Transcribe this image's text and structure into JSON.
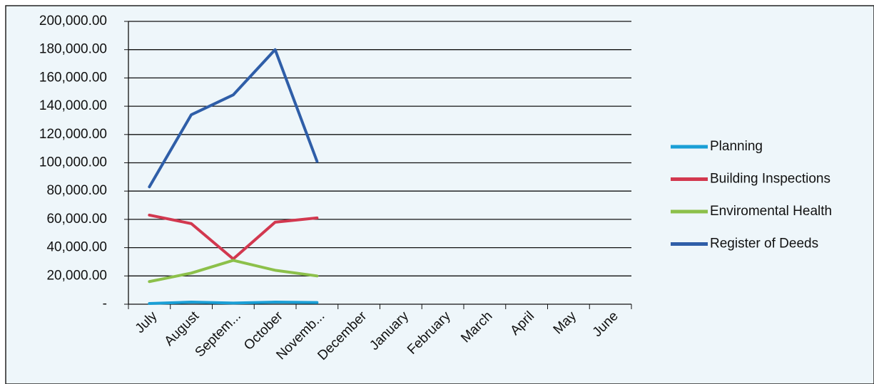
{
  "chart_data": {
    "type": "line",
    "categories": [
      "July",
      "August",
      "Septem...",
      "October",
      "Novemb...",
      "December",
      "January",
      "February",
      "March",
      "April",
      "May",
      "June"
    ],
    "series": [
      {
        "name": "Planning",
        "color": "#1a9fd6",
        "values": [
          500,
          1500,
          800,
          1500,
          1200,
          null,
          null,
          null,
          null,
          null,
          null,
          null
        ]
      },
      {
        "name": "Building Inspections",
        "color": "#d2384f",
        "values": [
          63000,
          57000,
          32000,
          58000,
          61000,
          null,
          null,
          null,
          null,
          null,
          null,
          null
        ]
      },
      {
        "name": "Enviromental Health",
        "color": "#8cc04a",
        "values": [
          16000,
          22000,
          31000,
          24000,
          20000,
          null,
          null,
          null,
          null,
          null,
          null,
          null
        ]
      },
      {
        "name": "Register of Deeds",
        "color": "#2f5ea8",
        "values": [
          83000,
          134000,
          148000,
          180000,
          101000,
          null,
          null,
          null,
          null,
          null,
          null,
          null
        ]
      }
    ],
    "ylim": [
      0,
      200000
    ],
    "yticks": [
      {
        "value": 0,
        "label": "-"
      },
      {
        "value": 20000,
        "label": "20,000.00"
      },
      {
        "value": 40000,
        "label": "40,000.00"
      },
      {
        "value": 60000,
        "label": "60,000.00"
      },
      {
        "value": 80000,
        "label": "80,000.00"
      },
      {
        "value": 100000,
        "label": "100,000.00"
      },
      {
        "value": 120000,
        "label": "120,000.00"
      },
      {
        "value": 140000,
        "label": "140,000.00"
      },
      {
        "value": 160000,
        "label": "160,000.00"
      },
      {
        "value": 180000,
        "label": "180,000.00"
      },
      {
        "value": 200000,
        "label": "200,000.00"
      }
    ],
    "grid": true,
    "legend": "right"
  }
}
